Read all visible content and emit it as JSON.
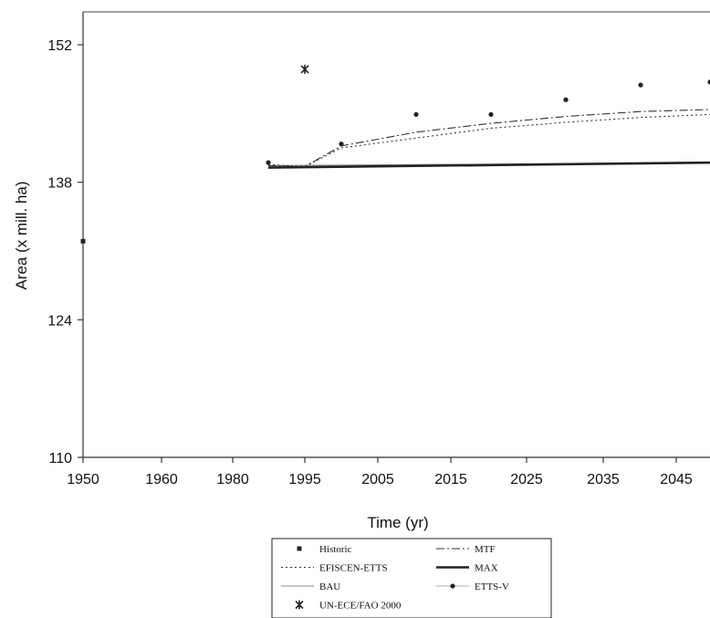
{
  "chart_data": {
    "type": "line",
    "xlabel": "Time (yr)",
    "ylabel": "Area (x mill. ha)",
    "x_ticks": [
      "1950",
      "1960",
      "1980",
      "1995",
      "2005",
      "2015",
      "2025",
      "2035",
      "2045"
    ],
    "y_ticks": [
      110,
      124,
      138,
      152
    ],
    "ylim": [
      110,
      155
    ],
    "grid": false,
    "legend_position": "bottom-center",
    "series": [
      {
        "name": "Historic",
        "style": "square-marker",
        "points": [
          [
            "1950",
            132
          ]
        ]
      },
      {
        "name": "EFISCEN-ETTS",
        "style": "dotted",
        "points": [
          [
            "1980*",
            139.8
          ],
          [
            "1990",
            139.6
          ],
          [
            "2000",
            141.5
          ],
          [
            "2010",
            142.5
          ],
          [
            "2020",
            143.5
          ],
          [
            "2030",
            144.1
          ],
          [
            "2040",
            144.6
          ],
          [
            "2050",
            144.9
          ]
        ]
      },
      {
        "name": "BAU",
        "style": "thin-solid",
        "points": [
          [
            "1980*",
            139.7
          ],
          [
            "2050",
            140.0
          ]
        ]
      },
      {
        "name": "UN-ECE/FAO 2000",
        "style": "star-marker",
        "points": [
          [
            "1995",
            149.5
          ]
        ]
      },
      {
        "name": "MTF",
        "style": "dash-dot",
        "points": [
          [
            "1980*",
            139.7
          ],
          [
            "1990",
            139.6
          ],
          [
            "2000",
            141.7
          ],
          [
            "2010",
            143.1
          ],
          [
            "2020",
            144.0
          ],
          [
            "2030",
            144.7
          ],
          [
            "2040",
            145.2
          ],
          [
            "2050",
            145.4
          ]
        ]
      },
      {
        "name": "MAX",
        "style": "thick-solid",
        "points": [
          [
            "1980*",
            139.5
          ],
          [
            "2050",
            140.0
          ]
        ]
      },
      {
        "name": "ETTS-V",
        "style": "dot-marker",
        "points": [
          [
            "1980*",
            140.0
          ],
          [
            "2000",
            141.9
          ],
          [
            "2010",
            144.9
          ],
          [
            "2020",
            144.9
          ],
          [
            "2030",
            146.4
          ],
          [
            "2040",
            147.9
          ],
          [
            "2050",
            148.2
          ]
        ]
      }
    ]
  }
}
